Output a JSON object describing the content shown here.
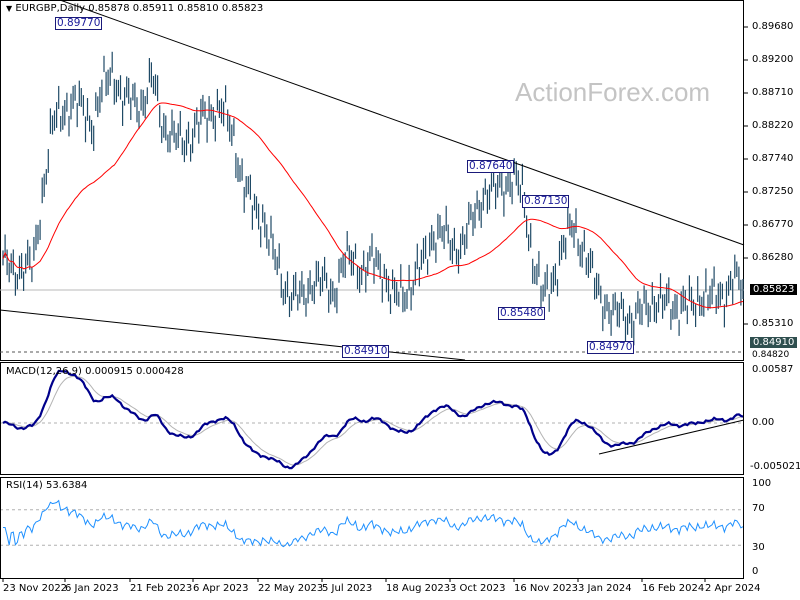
{
  "header": {
    "symbol_info": "EURGBP,Daily  0.85878 0.85911 0.85810 0.85823"
  },
  "watermark": "ActionForex.com",
  "colors": {
    "bars": "#1f4a66",
    "moving_average": "#ff0000",
    "macd": "#00008b",
    "macd_signal": "#b4b4b4",
    "rsi": "#1e90ff",
    "annotation": "#1a1a7a"
  },
  "chart_data": {
    "type": "bar",
    "title": "EURGBP,Daily",
    "ohlc_last": {
      "open": 0.85878,
      "high": 0.85911,
      "low": 0.8581,
      "close": 0.85823
    },
    "approx_closes": [
      0.8619,
      0.8612,
      0.8612,
      0.8615,
      0.8729,
      0.8824,
      0.8846,
      0.8854,
      0.8846,
      0.8824,
      0.8876,
      0.8905,
      0.8854,
      0.8861,
      0.8854,
      0.889,
      0.8824,
      0.8802,
      0.8799,
      0.881,
      0.8832,
      0.8846,
      0.8843,
      0.881,
      0.8736,
      0.87,
      0.8688,
      0.8634,
      0.859,
      0.8571,
      0.8568,
      0.8597,
      0.859,
      0.8575,
      0.8619,
      0.8626,
      0.8609,
      0.8623,
      0.8612,
      0.8568,
      0.8575,
      0.8594,
      0.8619,
      0.8663,
      0.8663,
      0.8644,
      0.8648,
      0.8685,
      0.8722,
      0.8722,
      0.8736,
      0.8744,
      0.8722,
      0.8626,
      0.8568,
      0.8597,
      0.8641,
      0.8678,
      0.8641,
      0.8597,
      0.8568,
      0.8541,
      0.855,
      0.8535,
      0.855,
      0.8568,
      0.856,
      0.8556,
      0.856,
      0.8553,
      0.8579,
      0.8568,
      0.8571,
      0.86,
      0.85823
    ],
    "x_tick_labels": [
      "23 Nov 2022",
      "6 Jan 2023",
      "21 Feb 2023",
      "6 Apr 2023",
      "22 May 2023",
      "5 Jul 2023",
      "18 Aug 2023",
      "3 Oct 2023",
      "16 Nov 2023",
      "3 Jan 2024",
      "16 Feb 2024",
      "2 Apr 2024"
    ],
    "y_tick_labels": [
      "0.89680",
      "0.89200",
      "0.88710",
      "0.88220",
      "0.87740",
      "0.87250",
      "0.86770",
      "0.86280",
      "0.85310",
      "0.84820"
    ],
    "ylim": [
      0.8482,
      0.8968
    ],
    "current_price": "0.85823",
    "support_level": "0.84910",
    "annotations": [
      "0.89770",
      "0.87640",
      "0.87130",
      "0.85480",
      "0.84970",
      "0.84910"
    ],
    "trendlines": "descending channel (upper and lower lines)"
  },
  "macd": {
    "label": "MACD(12,26,9) 0.000915 0.000428",
    "ticks": [
      "0.00587",
      "0.00",
      "-0.005021"
    ],
    "ylim": [
      -0.005021,
      0.00587
    ]
  },
  "rsi": {
    "label": "RSI(14) 53.6384",
    "ticks": [
      "100",
      "70",
      "30",
      "0"
    ],
    "ylim": [
      0,
      100
    ]
  }
}
